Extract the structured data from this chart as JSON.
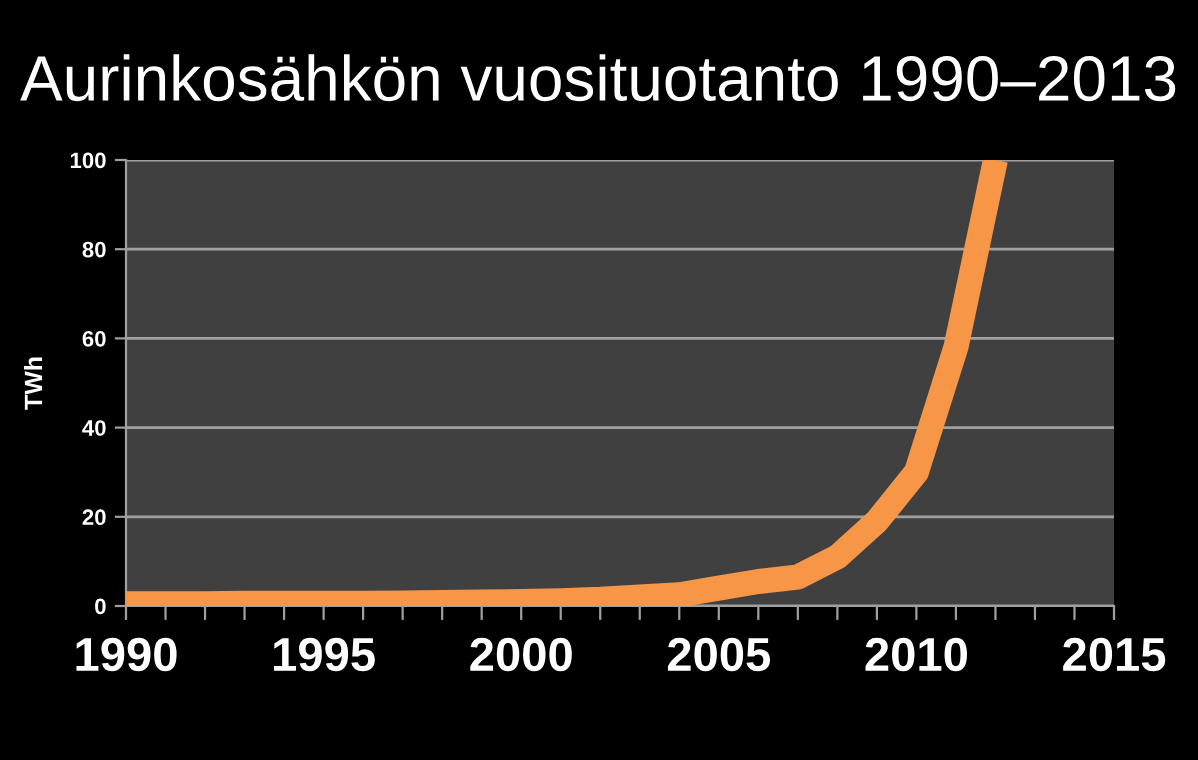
{
  "chart_data": {
    "type": "line",
    "title": "Aurinkosähkön vuosituotanto 1990–2013",
    "ylabel": "TWh",
    "x": [
      1990,
      1991,
      1992,
      1993,
      1994,
      1995,
      1996,
      1997,
      1998,
      1999,
      2000,
      2001,
      2002,
      2003,
      2004,
      2005,
      2006,
      2007,
      2008,
      2009,
      2010,
      2011,
      2012
    ],
    "series": [
      {
        "color": "#f79646",
        "values": [
          0.5,
          0.5,
          0.5,
          0.6,
          0.6,
          0.6,
          0.6,
          0.7,
          0.8,
          0.9,
          1,
          1.2,
          1.5,
          2,
          2.5,
          4,
          5.5,
          6.5,
          11,
          19,
          30,
          58,
          100
        ]
      }
    ],
    "xlim": [
      1990,
      2015
    ],
    "xticks": [
      1990,
      {
        "value": 1991,
        "label": null
      },
      {
        "value": 1992,
        "label": null
      },
      {
        "value": 1993,
        "label": null
      },
      {
        "value": 1994,
        "label": null
      },
      1995,
      {
        "value": 1996,
        "label": null
      },
      {
        "value": 1997,
        "label": null
      },
      {
        "value": 1998,
        "label": null
      },
      {
        "value": 1999,
        "label": null
      },
      2000,
      {
        "value": 2001,
        "label": null
      },
      {
        "value": 2002,
        "label": null
      },
      {
        "value": 2003,
        "label": null
      },
      {
        "value": 2004,
        "label": null
      },
      2005,
      {
        "value": 2006,
        "label": null
      },
      {
        "value": 2007,
        "label": null
      },
      {
        "value": 2008,
        "label": null
      },
      {
        "value": 2009,
        "label": null
      },
      2010,
      {
        "value": 2011,
        "label": null
      },
      {
        "value": 2012,
        "label": null
      },
      {
        "value": 2013,
        "label": null
      },
      {
        "value": 2014,
        "label": null
      },
      2015
    ],
    "ylim": [
      0,
      100
    ],
    "yticks": [
      0,
      20,
      40,
      60,
      80,
      100
    ],
    "grid": "y",
    "marker": "none",
    "line_style": "solid",
    "legend": false
  }
}
